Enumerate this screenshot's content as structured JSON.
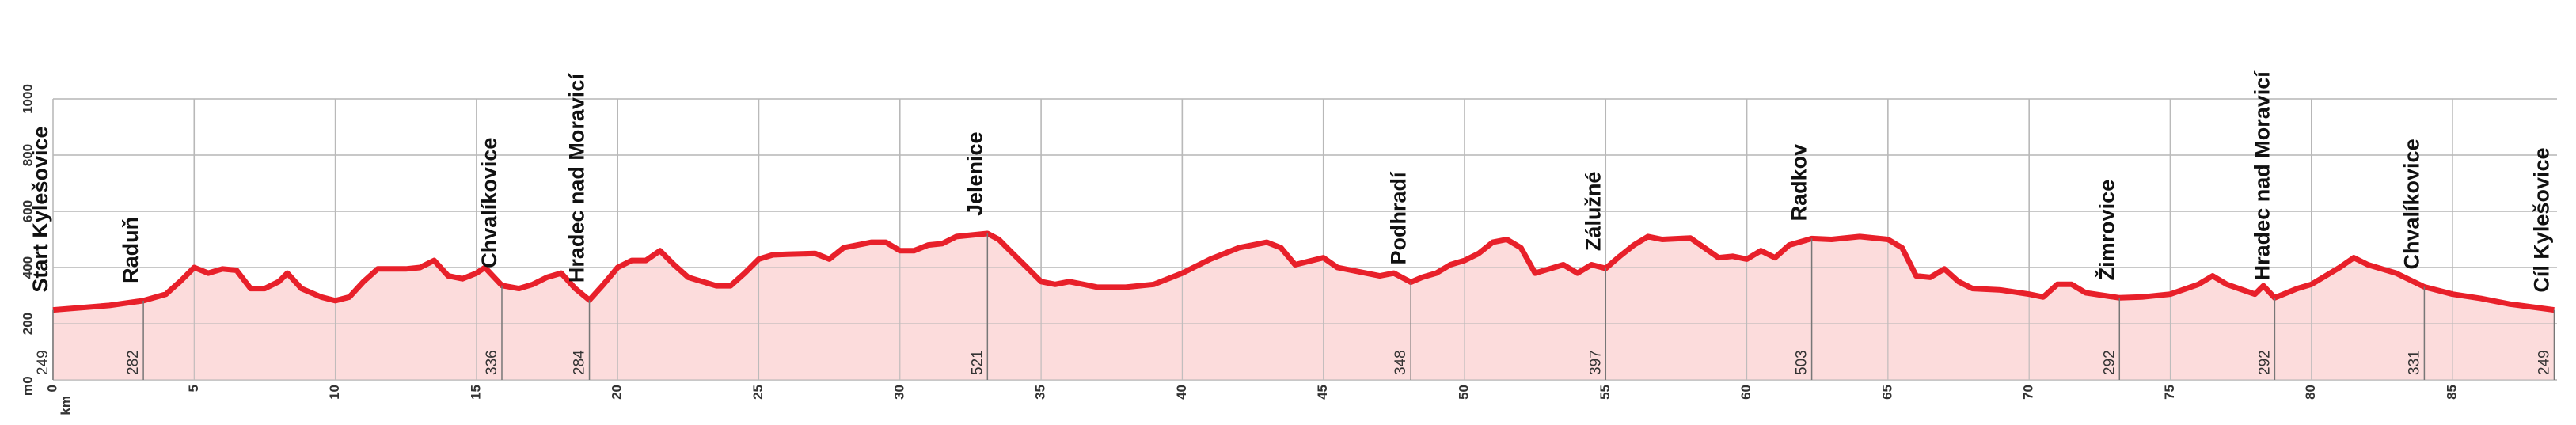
{
  "chart_data": {
    "type": "area",
    "x_label": "km",
    "y_label": "m",
    "xlim": [
      0,
      88.7
    ],
    "ylim": [
      0,
      1000
    ],
    "xticks": [
      0,
      5,
      10,
      15,
      20,
      25,
      30,
      35,
      40,
      45,
      50,
      55,
      60,
      65,
      70,
      75,
      80,
      85
    ],
    "yticks": [
      0,
      200,
      400,
      600,
      800,
      1000
    ],
    "grid": true,
    "color": "#e8202a",
    "fill_color": "#fcd6d6",
    "x": [
      0,
      2,
      3.2,
      4,
      4.5,
      5,
      5.5,
      6,
      6.5,
      7,
      7.5,
      8,
      8.3,
      8.8,
      9.5,
      10,
      10.5,
      11,
      11.5,
      12.5,
      13,
      13.5,
      14,
      14.5,
      15,
      15.3,
      15.9,
      16.5,
      17,
      17.5,
      18,
      18.5,
      19,
      19.5,
      20,
      20.5,
      21,
      21.5,
      22,
      22.5,
      23,
      23.5,
      24,
      24.5,
      25,
      25.5,
      26,
      27,
      27.5,
      28,
      29,
      29.5,
      30,
      30.5,
      31,
      31.5,
      32,
      33.1,
      33.5,
      34,
      34.5,
      35,
      35.5,
      36,
      36.5,
      37,
      38,
      39,
      40,
      41,
      42,
      43,
      43.5,
      44,
      45,
      45.5,
      46,
      47,
      47.5,
      48.1,
      48.5,
      49,
      49.5,
      50,
      50.5,
      51,
      51.5,
      52,
      52.5,
      53,
      53.5,
      54,
      54.5,
      55,
      55.5,
      56,
      56.5,
      57,
      58,
      58.5,
      59,
      59.5,
      60,
      60.5,
      61,
      61.5,
      62.3,
      63,
      64,
      65,
      65.5,
      66,
      66.5,
      67,
      67.5,
      68,
      69,
      70,
      70.5,
      71,
      71.5,
      72,
      73.2,
      74,
      75,
      76,
      76.5,
      77,
      78,
      78.3,
      78.7,
      79.5,
      80,
      81,
      81.5,
      82,
      82.5,
      83,
      84,
      85,
      86,
      87,
      88.6
    ],
    "values": [
      249,
      265,
      282,
      305,
      350,
      400,
      380,
      395,
      390,
      325,
      325,
      350,
      380,
      325,
      295,
      282,
      295,
      350,
      395,
      395,
      400,
      425,
      370,
      360,
      380,
      400,
      336,
      325,
      340,
      365,
      380,
      325,
      284,
      340,
      400,
      425,
      425,
      460,
      410,
      365,
      350,
      335,
      335,
      380,
      430,
      445,
      447,
      450,
      430,
      470,
      490,
      490,
      460,
      460,
      480,
      485,
      510,
      521,
      500,
      450,
      400,
      350,
      340,
      350,
      340,
      330,
      330,
      340,
      380,
      430,
      470,
      490,
      470,
      410,
      435,
      400,
      390,
      370,
      380,
      348,
      365,
      380,
      410,
      425,
      450,
      490,
      500,
      470,
      380,
      395,
      410,
      380,
      410,
      397,
      440,
      480,
      510,
      500,
      505,
      470,
      435,
      440,
      430,
      460,
      435,
      480,
      503,
      500,
      510,
      500,
      470,
      370,
      365,
      395,
      350,
      325,
      320,
      305,
      295,
      340,
      340,
      310,
      292,
      295,
      305,
      340,
      370,
      340,
      305,
      335,
      292,
      325,
      340,
      400,
      435,
      410,
      395,
      380,
      331,
      305,
      290,
      270,
      249
    ],
    "waypoints": [
      {
        "name": "Start Kylešovice",
        "x": 0,
        "elevation": 249
      },
      {
        "name": "Raduň",
        "x": 3.2,
        "elevation": 282
      },
      {
        "name": "Chvalíkovice",
        "x": 15.9,
        "elevation": 336
      },
      {
        "name": "Hradec nad Moravicí",
        "x": 19,
        "elevation": 284
      },
      {
        "name": "Jelenice",
        "x": 33.1,
        "elevation": 521
      },
      {
        "name": "Podhradí",
        "x": 48.1,
        "elevation": 348
      },
      {
        "name": "Zálužné",
        "x": 55,
        "elevation": 397
      },
      {
        "name": "Radkov",
        "x": 62.3,
        "elevation": 503
      },
      {
        "name": "Žimrovice",
        "x": 73.2,
        "elevation": 292
      },
      {
        "name": "Hradec nad Moravicí",
        "x": 78.7,
        "elevation": 292
      },
      {
        "name": "Chvalíkovice",
        "x": 84,
        "elevation": 331
      },
      {
        "name": "Cíl Kylešovice",
        "x": 88.6,
        "elevation": 249
      }
    ]
  }
}
